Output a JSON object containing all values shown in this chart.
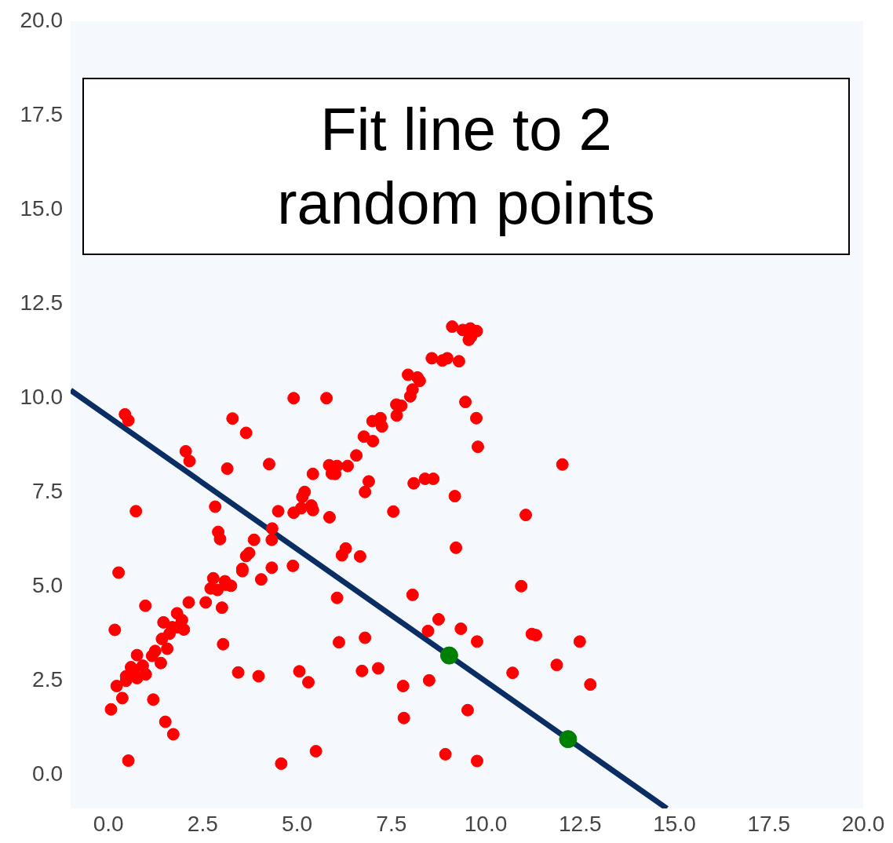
{
  "chart_data": {
    "type": "scatter",
    "title": "Fit line to 2 random points",
    "xlim": [
      -1,
      20
    ],
    "ylim": [
      -0.9,
      20
    ],
    "xticks": [
      {
        "value": 0,
        "label": "0.0"
      },
      {
        "value": 2.5,
        "label": "2.5"
      },
      {
        "value": 5,
        "label": "5.0"
      },
      {
        "value": 7.5,
        "label": "7.5"
      },
      {
        "value": 10,
        "label": "10.0"
      },
      {
        "value": 12.5,
        "label": "12.5"
      },
      {
        "value": 15,
        "label": "15.0"
      },
      {
        "value": 17.5,
        "label": "17.5"
      },
      {
        "value": 20,
        "label": "20.0"
      }
    ],
    "yticks": [
      {
        "value": 0,
        "label": "0.0"
      },
      {
        "value": 2.5,
        "label": "2.5"
      },
      {
        "value": 5,
        "label": "5.0"
      },
      {
        "value": 7.5,
        "label": "7.5"
      },
      {
        "value": 10,
        "label": "10.0"
      },
      {
        "value": 12.5,
        "label": "12.5"
      },
      {
        "value": 15,
        "label": "15.0"
      },
      {
        "value": 17.5,
        "label": "17.5"
      },
      {
        "value": 20,
        "label": "20.0"
      }
    ],
    "marker": "circle",
    "series": [
      {
        "type": "line",
        "marker": "none",
        "color": "#0a2d64",
        "x": [
          -1,
          14.8
        ],
        "values": [
          10.2,
          -0.9
        ]
      },
      {
        "type": "scatter",
        "color": "#ff0000",
        "x": [
          4.91,
          0.44,
          0.53,
          3.29,
          3.65,
          2.05,
          2.15,
          3.15,
          4.26,
          0.73,
          2.83,
          4.5,
          4.91,
          5.11,
          2.91,
          2.96,
          3.86,
          4.34,
          4.33,
          3.65,
          3.73,
          3.55,
          3.55,
          4.33,
          4.89,
          4.05,
          0.27,
          2.78,
          2.71,
          2.89,
          3.09,
          3.11,
          3.25,
          2.13,
          2.58,
          3.01,
          0.98,
          1.82,
          1.95,
          1.46,
          1.69,
          1.83,
          2.0,
          0.17,
          1.62,
          1.42,
          1.56,
          1.24,
          1.16,
          0.76,
          1.39,
          3.04,
          0.6,
          0.68,
          0.91,
          0.99,
          0.47,
          0.47,
          0.76,
          0.22,
          0.37,
          1.19,
          0.07,
          3.44,
          3.98,
          5.06,
          1.51,
          1.72,
          0.53,
          4.58,
          9.11,
          9.39,
          9.59,
          9.76,
          9.55,
          9.61,
          8.57,
          8.85,
          8.98,
          9.29,
          7.94,
          8.19,
          8.25,
          8.06,
          8.0,
          5.78,
          7.63,
          7.76,
          7.64,
          9.46,
          7.0,
          7.21,
          7.25,
          9.75,
          6.77,
          7.01,
          9.79,
          6.57,
          5.85,
          6.06,
          5.92,
          6.01,
          6.34,
          5.42,
          6.9,
          6.8,
          8.09,
          8.39,
          8.61,
          9.18,
          5.2,
          5.14,
          5.38,
          5.42,
          5.86,
          7.55,
          9.21,
          6.29,
          6.19,
          6.67,
          6.06,
          8.06,
          8.75,
          8.47,
          9.34,
          9.77,
          6.11,
          6.8,
          5.3,
          6.72,
          7.15,
          7.81,
          8.5,
          9.52,
          7.83,
          5.5,
          8.93,
          9.77,
          12.03,
          11.06,
          10.94,
          11.22,
          11.33,
          12.49,
          11.88,
          10.71,
          12.77
        ],
        "values": [
          9.99,
          9.56,
          9.4,
          9.45,
          9.07,
          8.58,
          8.32,
          8.12,
          8.24,
          6.99,
          7.11,
          6.99,
          6.95,
          7.07,
          6.44,
          6.25,
          6.23,
          6.53,
          6.23,
          5.8,
          5.88,
          5.46,
          5.4,
          5.49,
          5.54,
          5.18,
          5.36,
          5.21,
          4.94,
          4.9,
          5.13,
          5.04,
          5.01,
          4.57,
          4.57,
          4.43,
          4.48,
          4.28,
          4.1,
          4.04,
          3.91,
          3.91,
          3.85,
          3.84,
          3.74,
          3.6,
          3.34,
          3.28,
          3.15,
          3.17,
          2.96,
          3.46,
          2.85,
          2.75,
          2.89,
          2.66,
          2.61,
          2.49,
          2.56,
          2.35,
          2.03,
          1.99,
          1.73,
          2.71,
          2.61,
          2.74,
          1.4,
          1.07,
          0.37,
          0.29,
          11.89,
          11.8,
          11.84,
          11.77,
          11.54,
          11.62,
          11.05,
          10.99,
          11.05,
          10.97,
          10.61,
          10.54,
          10.45,
          10.22,
          10.04,
          9.99,
          9.82,
          9.79,
          9.53,
          9.89,
          9.38,
          9.46,
          9.24,
          9.46,
          8.97,
          8.85,
          8.7,
          8.47,
          8.21,
          8.19,
          7.99,
          7.98,
          8.19,
          7.98,
          7.78,
          7.5,
          7.73,
          7.85,
          7.85,
          7.39,
          7.5,
          7.37,
          7.14,
          7.02,
          6.83,
          6.98,
          6.02,
          6.0,
          5.82,
          5.79,
          4.69,
          4.77,
          4.12,
          3.81,
          3.87,
          3.53,
          3.51,
          3.63,
          2.45,
          2.75,
          2.82,
          2.35,
          2.5,
          1.71,
          1.5,
          0.62,
          0.54,
          0.36,
          8.23,
          6.89,
          5.0,
          3.73,
          3.7,
          3.53,
          2.91,
          2.7,
          2.39
        ]
      },
      {
        "type": "scatter",
        "color": "#008000",
        "x": [
          9.03,
          12.18
        ],
        "values": [
          3.16,
          0.94
        ]
      }
    ]
  }
}
